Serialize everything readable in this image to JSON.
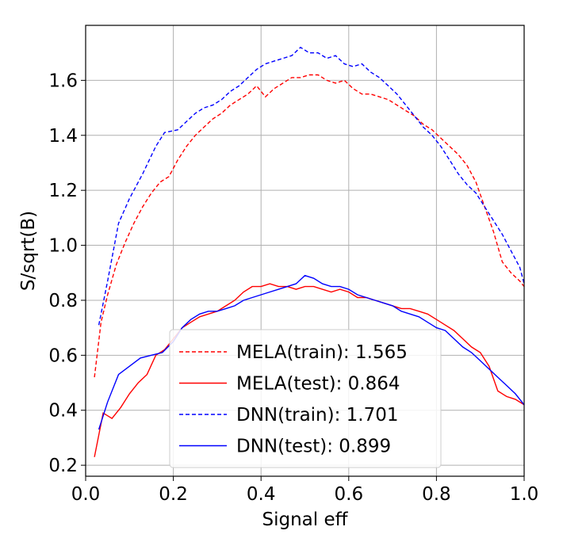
{
  "chart_data": {
    "type": "line",
    "title": "",
    "xlabel": "Signal eff",
    "ylabel": "S/sqrt(B)",
    "xlim": [
      0.0,
      1.0
    ],
    "ylim": [
      0.16,
      1.8
    ],
    "xticks": [
      0.0,
      0.2,
      0.4,
      0.6,
      0.8,
      1.0
    ],
    "xtick_labels": [
      "0.0",
      "0.2",
      "0.4",
      "0.6",
      "0.8",
      "1.0"
    ],
    "yticks": [
      0.2,
      0.4,
      0.6,
      0.8,
      1.0,
      1.2,
      1.4,
      1.6
    ],
    "ytick_labels": [
      "0.2",
      "0.4",
      "0.6",
      "0.8",
      "1.0",
      "1.2",
      "1.4",
      "1.6"
    ],
    "grid": true,
    "legend_position": "lower-center",
    "series": [
      {
        "name": "MELA(train): 1.565",
        "color": "#ff0000",
        "dashed": true,
        "x": [
          0.02,
          0.035,
          0.05,
          0.07,
          0.09,
          0.11,
          0.13,
          0.15,
          0.17,
          0.19,
          0.21,
          0.23,
          0.25,
          0.27,
          0.29,
          0.31,
          0.33,
          0.35,
          0.37,
          0.39,
          0.41,
          0.43,
          0.45,
          0.47,
          0.49,
          0.51,
          0.53,
          0.55,
          0.57,
          0.59,
          0.61,
          0.63,
          0.65,
          0.67,
          0.69,
          0.71,
          0.73,
          0.75,
          0.77,
          0.79,
          0.81,
          0.83,
          0.85,
          0.87,
          0.89,
          0.91,
          0.93,
          0.95,
          0.97,
          0.99,
          1.0
        ],
        "y": [
          0.52,
          0.72,
          0.82,
          0.93,
          1.01,
          1.08,
          1.14,
          1.19,
          1.23,
          1.25,
          1.31,
          1.36,
          1.4,
          1.43,
          1.46,
          1.48,
          1.51,
          1.53,
          1.55,
          1.58,
          1.54,
          1.57,
          1.59,
          1.61,
          1.61,
          1.62,
          1.62,
          1.6,
          1.59,
          1.6,
          1.57,
          1.55,
          1.55,
          1.54,
          1.53,
          1.51,
          1.49,
          1.47,
          1.44,
          1.42,
          1.39,
          1.36,
          1.33,
          1.29,
          1.23,
          1.14,
          1.05,
          0.94,
          0.9,
          0.87,
          0.85
        ]
      },
      {
        "name": "MELA(test): 0.864",
        "color": "#ff0000",
        "dashed": false,
        "x": [
          0.02,
          0.04,
          0.06,
          0.08,
          0.1,
          0.12,
          0.14,
          0.16,
          0.18,
          0.2,
          0.22,
          0.24,
          0.26,
          0.28,
          0.3,
          0.32,
          0.34,
          0.36,
          0.38,
          0.4,
          0.42,
          0.44,
          0.46,
          0.48,
          0.5,
          0.52,
          0.54,
          0.56,
          0.58,
          0.6,
          0.62,
          0.64,
          0.66,
          0.68,
          0.7,
          0.72,
          0.74,
          0.76,
          0.78,
          0.8,
          0.82,
          0.84,
          0.86,
          0.88,
          0.9,
          0.92,
          0.94,
          0.96,
          0.98,
          1.0
        ],
        "y": [
          0.23,
          0.39,
          0.37,
          0.41,
          0.46,
          0.5,
          0.53,
          0.6,
          0.62,
          0.66,
          0.7,
          0.72,
          0.74,
          0.75,
          0.76,
          0.78,
          0.8,
          0.83,
          0.85,
          0.85,
          0.86,
          0.85,
          0.85,
          0.84,
          0.85,
          0.85,
          0.84,
          0.83,
          0.84,
          0.83,
          0.81,
          0.81,
          0.8,
          0.79,
          0.78,
          0.77,
          0.77,
          0.76,
          0.75,
          0.73,
          0.71,
          0.69,
          0.66,
          0.63,
          0.61,
          0.56,
          0.47,
          0.45,
          0.44,
          0.42
        ]
      },
      {
        "name": "DNN(train): 1.701",
        "color": "#0000ff",
        "dashed": true,
        "x": [
          0.03,
          0.05,
          0.075,
          0.1,
          0.13,
          0.16,
          0.18,
          0.21,
          0.23,
          0.25,
          0.27,
          0.29,
          0.31,
          0.33,
          0.35,
          0.37,
          0.39,
          0.41,
          0.43,
          0.45,
          0.47,
          0.49,
          0.51,
          0.53,
          0.55,
          0.57,
          0.59,
          0.61,
          0.63,
          0.65,
          0.67,
          0.69,
          0.71,
          0.73,
          0.75,
          0.77,
          0.79,
          0.81,
          0.83,
          0.85,
          0.87,
          0.89,
          0.91,
          0.93,
          0.95,
          0.97,
          0.99,
          1.0
        ],
        "y": [
          0.71,
          0.87,
          1.08,
          1.17,
          1.26,
          1.36,
          1.41,
          1.42,
          1.45,
          1.48,
          1.5,
          1.51,
          1.53,
          1.56,
          1.58,
          1.61,
          1.64,
          1.66,
          1.67,
          1.68,
          1.69,
          1.72,
          1.7,
          1.7,
          1.68,
          1.69,
          1.66,
          1.65,
          1.66,
          1.63,
          1.61,
          1.58,
          1.55,
          1.51,
          1.47,
          1.43,
          1.4,
          1.36,
          1.31,
          1.26,
          1.22,
          1.19,
          1.14,
          1.09,
          1.04,
          0.98,
          0.92,
          0.86
        ]
      },
      {
        "name": "DNN(test): 0.899",
        "color": "#0000ff",
        "dashed": false,
        "x": [
          0.03,
          0.05,
          0.075,
          0.1,
          0.125,
          0.15,
          0.175,
          0.2,
          0.22,
          0.24,
          0.26,
          0.28,
          0.3,
          0.32,
          0.34,
          0.36,
          0.38,
          0.4,
          0.42,
          0.44,
          0.46,
          0.48,
          0.5,
          0.52,
          0.54,
          0.56,
          0.58,
          0.6,
          0.62,
          0.64,
          0.66,
          0.68,
          0.7,
          0.72,
          0.74,
          0.76,
          0.78,
          0.8,
          0.82,
          0.84,
          0.86,
          0.88,
          0.9,
          0.92,
          0.94,
          0.96,
          0.98,
          1.0
        ],
        "y": [
          0.33,
          0.43,
          0.53,
          0.56,
          0.59,
          0.6,
          0.61,
          0.65,
          0.7,
          0.73,
          0.75,
          0.76,
          0.76,
          0.77,
          0.78,
          0.8,
          0.81,
          0.82,
          0.83,
          0.84,
          0.85,
          0.86,
          0.89,
          0.88,
          0.86,
          0.85,
          0.85,
          0.84,
          0.82,
          0.81,
          0.8,
          0.79,
          0.78,
          0.76,
          0.75,
          0.74,
          0.72,
          0.7,
          0.69,
          0.66,
          0.63,
          0.61,
          0.58,
          0.55,
          0.52,
          0.49,
          0.46,
          0.42
        ]
      }
    ]
  }
}
